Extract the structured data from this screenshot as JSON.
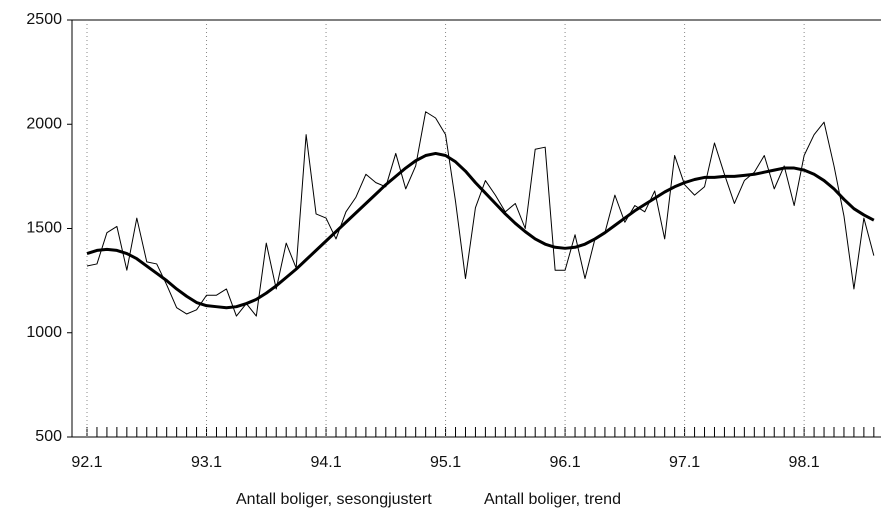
{
  "chart_data": {
    "type": "line",
    "categories": [
      "92.1",
      null,
      null,
      null,
      null,
      null,
      null,
      null,
      null,
      null,
      null,
      null,
      "93.1",
      null,
      null,
      null,
      null,
      null,
      null,
      null,
      null,
      null,
      null,
      null,
      "94.1",
      null,
      null,
      null,
      null,
      null,
      null,
      null,
      null,
      null,
      null,
      null,
      "95.1",
      null,
      null,
      null,
      null,
      null,
      null,
      null,
      null,
      null,
      null,
      null,
      "96.1",
      null,
      null,
      null,
      null,
      null,
      null,
      null,
      null,
      null,
      null,
      null,
      "97.1",
      null,
      null,
      null,
      null,
      null,
      null,
      null,
      null,
      null,
      null,
      null,
      "98.1",
      null,
      null,
      null,
      null,
      null,
      null,
      null
    ],
    "series": [
      {
        "name": "Antall boliger, sesongjustert",
        "color": "#000000",
        "width": 1,
        "values": [
          1320,
          1330,
          1480,
          1510,
          1300,
          1550,
          1340,
          1330,
          1230,
          1120,
          1090,
          1110,
          1180,
          1180,
          1210,
          1080,
          1140,
          1080,
          1430,
          1210,
          1430,
          1310,
          1950,
          1570,
          1550,
          1450,
          1580,
          1650,
          1760,
          1720,
          1700,
          1860,
          1690,
          1800,
          2060,
          2030,
          1950,
          1630,
          1260,
          1600,
          1730,
          1660,
          1580,
          1620,
          1500,
          1880,
          1890,
          1300,
          1300,
          1470,
          1260,
          1450,
          1480,
          1660,
          1530,
          1610,
          1580,
          1680,
          1450,
          1850,
          1710,
          1660,
          1700,
          1910,
          1760,
          1620,
          1730,
          1770,
          1850,
          1690,
          1800,
          1610,
          1850,
          1950,
          2010,
          1800,
          1560,
          1210,
          1550,
          1370
        ]
      },
      {
        "name": "Antall boliger, trend",
        "color": "#000000",
        "width": 3,
        "values": [
          1380,
          1395,
          1400,
          1395,
          1380,
          1355,
          1320,
          1285,
          1250,
          1210,
          1175,
          1145,
          1130,
          1125,
          1120,
          1125,
          1140,
          1160,
          1190,
          1225,
          1265,
          1305,
          1350,
          1395,
          1440,
          1485,
          1530,
          1575,
          1620,
          1665,
          1710,
          1750,
          1790,
          1825,
          1850,
          1860,
          1850,
          1820,
          1775,
          1720,
          1670,
          1620,
          1570,
          1525,
          1485,
          1450,
          1425,
          1410,
          1405,
          1410,
          1425,
          1450,
          1480,
          1515,
          1550,
          1585,
          1615,
          1645,
          1675,
          1700,
          1720,
          1735,
          1745,
          1745,
          1750,
          1750,
          1755,
          1760,
          1770,
          1780,
          1790,
          1790,
          1780,
          1760,
          1730,
          1690,
          1640,
          1595,
          1565,
          1540
        ]
      }
    ],
    "ylim": [
      500,
      2500
    ],
    "yticks": [
      500,
      1000,
      1500,
      2000,
      2500
    ],
    "grid": true
  }
}
